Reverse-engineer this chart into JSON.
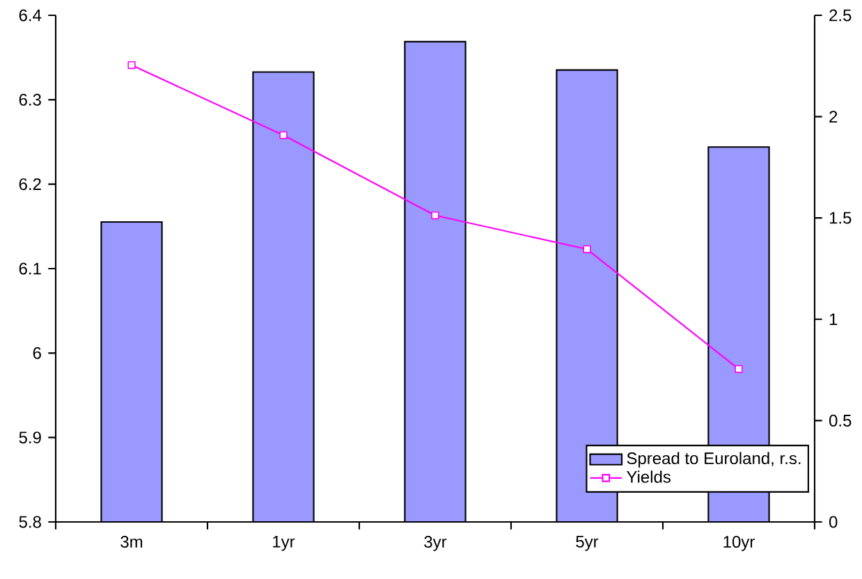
{
  "chart_data": {
    "type": "bar",
    "categories": [
      "3m",
      "1yr",
      "3yr",
      "5yr",
      "10yr"
    ],
    "series": [
      {
        "name": "Spread to Euroland, r.s.",
        "axis": "y2",
        "color": "#9999ff",
        "values": [
          1.48,
          2.22,
          2.37,
          2.23,
          1.85
        ]
      },
      {
        "name": "Yields",
        "type": "line",
        "color": "#ff00ff",
        "values": [
          6.341,
          6.258,
          6.163,
          6.123,
          5.981
        ]
      }
    ],
    "marker": "square",
    "legend": "bottom right",
    "ylim": [
      5.8,
      6.4
    ],
    "yticks": [
      5.8,
      5.9,
      6,
      6.1,
      6.2,
      6.3,
      6.4
    ],
    "y2lim": [
      0,
      2.5
    ],
    "y2ticks": [
      0,
      0.5,
      1,
      1.5,
      2,
      2.5
    ]
  }
}
